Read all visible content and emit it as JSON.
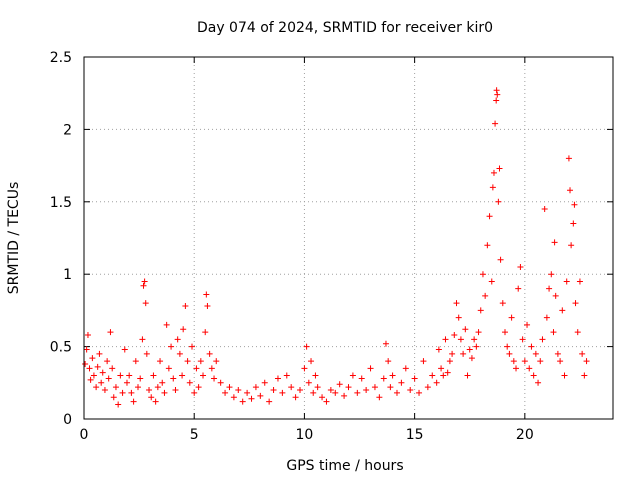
{
  "chart_data": {
    "type": "scatter",
    "title": "Day 074 of 2024, SRMTID for receiver kir0",
    "xlabel": "GPS time / hours",
    "ylabel": "SRMTID / TECUs",
    "xlim": [
      0,
      24
    ],
    "ylim": [
      0,
      2.5
    ],
    "xticks": [
      0,
      5,
      10,
      15,
      20
    ],
    "xtick_labels": [
      "0",
      "5",
      "10",
      "15",
      "20"
    ],
    "yticks": [
      0,
      0.5,
      1,
      1.5,
      2,
      2.5
    ],
    "ytick_labels": [
      "0",
      "0.5",
      "1",
      "1.5",
      "2",
      "2.5"
    ],
    "grid": true,
    "marker": "+",
    "color": "#ff0000",
    "series": [
      {
        "name": "SRMTID",
        "points": [
          [
            0.05,
            0.38
          ],
          [
            0.12,
            0.48
          ],
          [
            0.18,
            0.58
          ],
          [
            0.25,
            0.35
          ],
          [
            0.3,
            0.27
          ],
          [
            0.38,
            0.42
          ],
          [
            0.45,
            0.3
          ],
          [
            0.55,
            0.22
          ],
          [
            0.62,
            0.36
          ],
          [
            0.7,
            0.45
          ],
          [
            0.78,
            0.25
          ],
          [
            0.85,
            0.32
          ],
          [
            0.95,
            0.2
          ],
          [
            1.05,
            0.4
          ],
          [
            1.12,
            0.28
          ],
          [
            1.2,
            0.6
          ],
          [
            1.28,
            0.35
          ],
          [
            1.35,
            0.15
          ],
          [
            1.45,
            0.22
          ],
          [
            1.55,
            0.1
          ],
          [
            1.65,
            0.3
          ],
          [
            1.75,
            0.18
          ],
          [
            1.85,
            0.48
          ],
          [
            1.95,
            0.25
          ],
          [
            2.05,
            0.3
          ],
          [
            2.15,
            0.18
          ],
          [
            2.25,
            0.12
          ],
          [
            2.35,
            0.4
          ],
          [
            2.45,
            0.22
          ],
          [
            2.55,
            0.28
          ],
          [
            2.65,
            0.55
          ],
          [
            2.7,
            0.92
          ],
          [
            2.75,
            0.95
          ],
          [
            2.8,
            0.8
          ],
          [
            2.85,
            0.45
          ],
          [
            2.95,
            0.2
          ],
          [
            3.05,
            0.15
          ],
          [
            3.15,
            0.3
          ],
          [
            3.25,
            0.12
          ],
          [
            3.35,
            0.22
          ],
          [
            3.45,
            0.4
          ],
          [
            3.55,
            0.25
          ],
          [
            3.65,
            0.18
          ],
          [
            3.75,
            0.65
          ],
          [
            3.85,
            0.35
          ],
          [
            3.95,
            0.5
          ],
          [
            4.05,
            0.28
          ],
          [
            4.15,
            0.2
          ],
          [
            4.25,
            0.55
          ],
          [
            4.35,
            0.45
          ],
          [
            4.45,
            0.3
          ],
          [
            4.5,
            0.62
          ],
          [
            4.6,
            0.78
          ],
          [
            4.7,
            0.4
          ],
          [
            4.8,
            0.25
          ],
          [
            4.9,
            0.5
          ],
          [
            5.0,
            0.18
          ],
          [
            5.1,
            0.35
          ],
          [
            5.2,
            0.22
          ],
          [
            5.3,
            0.4
          ],
          [
            5.4,
            0.3
          ],
          [
            5.5,
            0.6
          ],
          [
            5.55,
            0.86
          ],
          [
            5.6,
            0.78
          ],
          [
            5.7,
            0.45
          ],
          [
            5.8,
            0.35
          ],
          [
            5.9,
            0.28
          ],
          [
            6.0,
            0.4
          ],
          [
            6.2,
            0.25
          ],
          [
            6.4,
            0.18
          ],
          [
            6.6,
            0.22
          ],
          [
            6.8,
            0.15
          ],
          [
            7.0,
            0.2
          ],
          [
            7.2,
            0.12
          ],
          [
            7.4,
            0.18
          ],
          [
            7.6,
            0.14
          ],
          [
            7.8,
            0.22
          ],
          [
            8.0,
            0.16
          ],
          [
            8.2,
            0.25
          ],
          [
            8.4,
            0.12
          ],
          [
            8.6,
            0.2
          ],
          [
            8.8,
            0.28
          ],
          [
            9.0,
            0.18
          ],
          [
            9.2,
            0.3
          ],
          [
            9.4,
            0.22
          ],
          [
            9.6,
            0.15
          ],
          [
            9.8,
            0.2
          ],
          [
            10.0,
            0.35
          ],
          [
            10.1,
            0.5
          ],
          [
            10.2,
            0.25
          ],
          [
            10.3,
            0.4
          ],
          [
            10.4,
            0.18
          ],
          [
            10.5,
            0.3
          ],
          [
            10.6,
            0.22
          ],
          [
            10.8,
            0.15
          ],
          [
            11.0,
            0.12
          ],
          [
            11.2,
            0.2
          ],
          [
            11.4,
            0.18
          ],
          [
            11.6,
            0.24
          ],
          [
            11.8,
            0.16
          ],
          [
            12.0,
            0.22
          ],
          [
            12.2,
            0.3
          ],
          [
            12.4,
            0.18
          ],
          [
            12.6,
            0.28
          ],
          [
            12.8,
            0.2
          ],
          [
            13.0,
            0.35
          ],
          [
            13.2,
            0.22
          ],
          [
            13.4,
            0.15
          ],
          [
            13.6,
            0.28
          ],
          [
            13.7,
            0.52
          ],
          [
            13.8,
            0.4
          ],
          [
            13.9,
            0.22
          ],
          [
            14.0,
            0.3
          ],
          [
            14.2,
            0.18
          ],
          [
            14.4,
            0.25
          ],
          [
            14.6,
            0.35
          ],
          [
            14.8,
            0.2
          ],
          [
            15.0,
            0.28
          ],
          [
            15.2,
            0.18
          ],
          [
            15.4,
            0.4
          ],
          [
            15.6,
            0.22
          ],
          [
            15.8,
            0.3
          ],
          [
            16.0,
            0.25
          ],
          [
            16.1,
            0.48
          ],
          [
            16.2,
            0.35
          ],
          [
            16.3,
            0.3
          ],
          [
            16.4,
            0.55
          ],
          [
            16.5,
            0.32
          ],
          [
            16.6,
            0.4
          ],
          [
            16.7,
            0.45
          ],
          [
            16.8,
            0.58
          ],
          [
            16.9,
            0.8
          ],
          [
            17.0,
            0.7
          ],
          [
            17.1,
            0.55
          ],
          [
            17.2,
            0.45
          ],
          [
            17.3,
            0.62
          ],
          [
            17.4,
            0.3
          ],
          [
            17.5,
            0.48
          ],
          [
            17.6,
            0.42
          ],
          [
            17.7,
            0.55
          ],
          [
            17.8,
            0.5
          ],
          [
            17.9,
            0.6
          ],
          [
            18.0,
            0.75
          ],
          [
            18.1,
            1.0
          ],
          [
            18.2,
            0.85
          ],
          [
            18.3,
            1.2
          ],
          [
            18.4,
            1.4
          ],
          [
            18.5,
            0.95
          ],
          [
            18.55,
            1.6
          ],
          [
            18.6,
            1.7
          ],
          [
            18.65,
            2.04
          ],
          [
            18.7,
            2.2
          ],
          [
            18.72,
            2.27
          ],
          [
            18.75,
            2.24
          ],
          [
            18.8,
            1.5
          ],
          [
            18.85,
            1.73
          ],
          [
            18.9,
            1.1
          ],
          [
            19.0,
            0.8
          ],
          [
            19.1,
            0.6
          ],
          [
            19.2,
            0.5
          ],
          [
            19.3,
            0.45
          ],
          [
            19.4,
            0.7
          ],
          [
            19.5,
            0.4
          ],
          [
            19.6,
            0.35
          ],
          [
            19.7,
            0.9
          ],
          [
            19.8,
            1.05
          ],
          [
            19.9,
            0.55
          ],
          [
            20.0,
            0.4
          ],
          [
            20.1,
            0.65
          ],
          [
            20.2,
            0.35
          ],
          [
            20.3,
            0.5
          ],
          [
            20.4,
            0.3
          ],
          [
            20.5,
            0.45
          ],
          [
            20.6,
            0.25
          ],
          [
            20.7,
            0.4
          ],
          [
            20.8,
            0.55
          ],
          [
            20.9,
            1.45
          ],
          [
            21.0,
            0.7
          ],
          [
            21.1,
            0.9
          ],
          [
            21.2,
            1.0
          ],
          [
            21.3,
            0.6
          ],
          [
            21.35,
            1.22
          ],
          [
            21.4,
            0.85
          ],
          [
            21.5,
            0.45
          ],
          [
            21.6,
            0.4
          ],
          [
            21.7,
            0.75
          ],
          [
            21.8,
            0.3
          ],
          [
            21.9,
            0.95
          ],
          [
            22.0,
            1.8
          ],
          [
            22.05,
            1.58
          ],
          [
            22.1,
            1.2
          ],
          [
            22.2,
            1.35
          ],
          [
            22.25,
            1.48
          ],
          [
            22.3,
            0.8
          ],
          [
            22.4,
            0.6
          ],
          [
            22.5,
            0.95
          ],
          [
            22.6,
            0.45
          ],
          [
            22.7,
            0.3
          ],
          [
            22.8,
            0.4
          ]
        ]
      }
    ]
  }
}
